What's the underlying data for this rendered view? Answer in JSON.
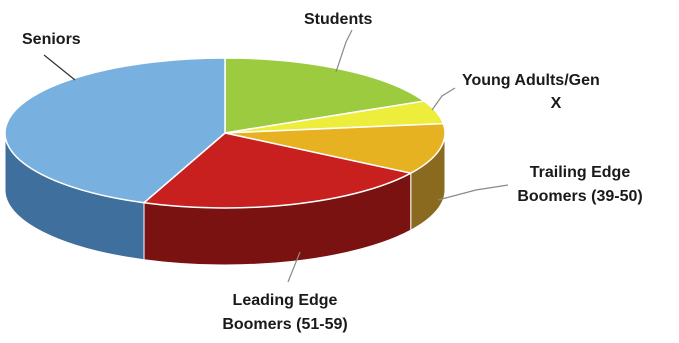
{
  "chart_data": {
    "type": "pie",
    "style": "3d",
    "title": "",
    "slices": [
      {
        "label": "Students",
        "value": 18,
        "color": "#9dcb3f",
        "side_color": "#6e8f2a"
      },
      {
        "label": "Young Adults/Gen X",
        "value": 5,
        "color": "#eded3c",
        "side_color": "#a8a42a"
      },
      {
        "label": "Trailing Edge Boomers (39-50)",
        "value": 11,
        "color": "#e6b221",
        "side_color": "#8a6a1e"
      },
      {
        "label": "Leading Edge Boomers (51-59)",
        "value": 22,
        "color": "#c81f1f",
        "side_color": "#7a1212"
      },
      {
        "label": "Seniors",
        "value": 44,
        "color": "#78b1e0",
        "side_color": "#3f6f9c"
      }
    ],
    "labels": {
      "seniors": "Seniors",
      "students": "Students",
      "young_1": "Young Adults/Gen",
      "young_2": "X",
      "trailing_1": "Trailing Edge",
      "trailing_2": "Boomers (39-50)",
      "leading_1": "Leading Edge",
      "leading_2": "Boomers (51-59)"
    }
  }
}
